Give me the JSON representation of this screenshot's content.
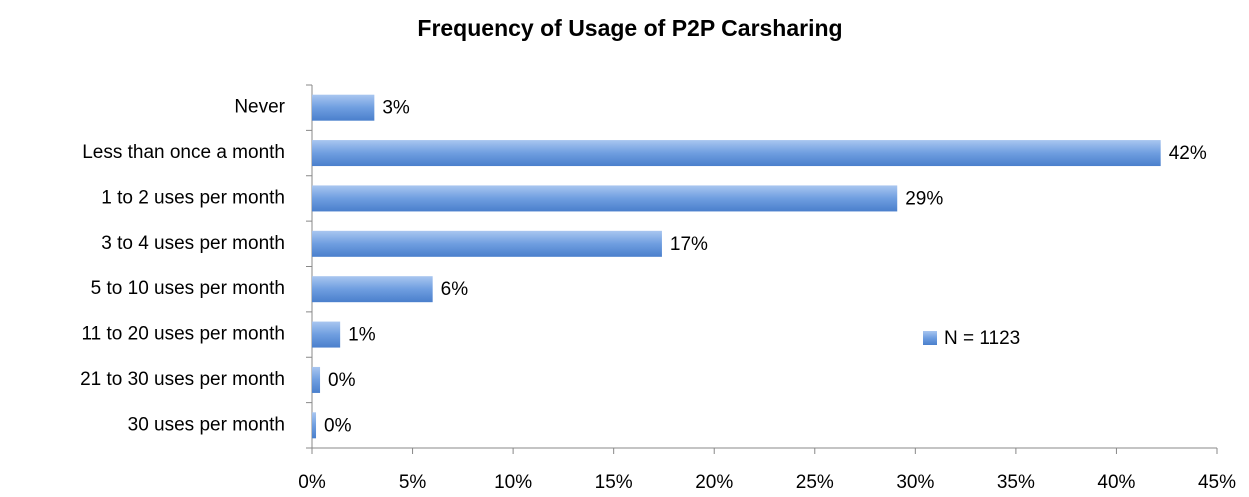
{
  "chart_data": {
    "type": "bar",
    "orientation": "horizontal",
    "title": "Frequency of Usage of P2P Carsharing",
    "categories": [
      "Never",
      "Less than once a month",
      "1 to 2 uses per month",
      "3 to 4 uses per month",
      "5 to 10 uses per month",
      "11 to 20 uses per month",
      "21 to 30 uses per month",
      "30 uses per month"
    ],
    "series": [
      {
        "name": "N = 1123",
        "color": "#6f9ee0",
        "values": [
          3.1,
          42.2,
          29.1,
          17.4,
          6.0,
          1.4,
          0.4,
          0.2
        ],
        "value_labels": [
          "3%",
          "42%",
          "29%",
          "17%",
          "6%",
          "1%",
          "0%",
          "0%"
        ]
      }
    ],
    "xlim": [
      0,
      45
    ],
    "xticks": [
      {
        "value": 0,
        "label": "0%"
      },
      {
        "value": 5,
        "label": "5%"
      },
      {
        "value": 10,
        "label": "10%"
      },
      {
        "value": 15,
        "label": "15%"
      },
      {
        "value": 20,
        "label": "20%"
      },
      {
        "value": 25,
        "label": "25%"
      },
      {
        "value": 30,
        "label": "30%"
      },
      {
        "value": 35,
        "label": "35%"
      },
      {
        "value": 40,
        "label": "40%"
      },
      {
        "value": 45,
        "label": "45%"
      }
    ],
    "grid": false,
    "legend": "right"
  }
}
